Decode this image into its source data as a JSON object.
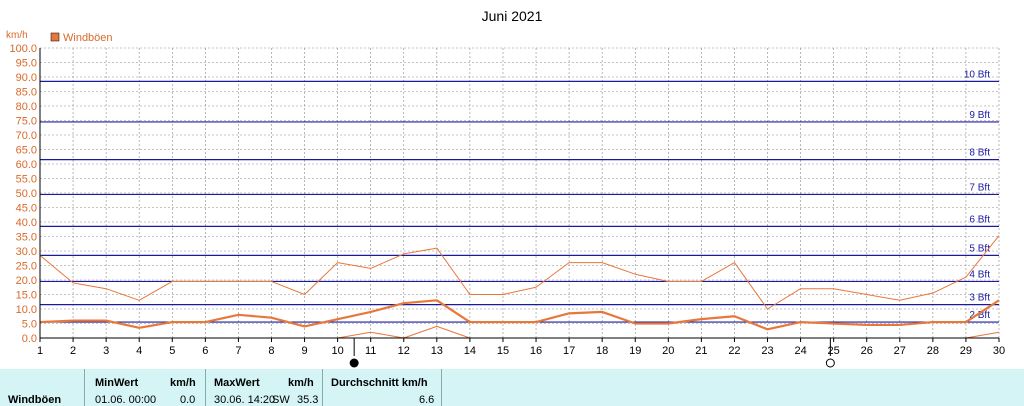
{
  "chart_data": {
    "type": "line",
    "title": "Juni 2021",
    "ylabel": "km/h",
    "legend": {
      "label": "Windböen",
      "placement": "top-left",
      "color": "#e8773a"
    },
    "ylim": [
      0,
      100
    ],
    "yticks": [
      "0.0",
      "5.0",
      "10.0",
      "15.0",
      "20.0",
      "25.0",
      "30.0",
      "35.0",
      "40.0",
      "45.0",
      "50.0",
      "55.0",
      "60.0",
      "65.0",
      "70.0",
      "75.0",
      "80.0",
      "85.0",
      "90.0",
      "95.0",
      "100.0"
    ],
    "x": [
      1,
      2,
      3,
      4,
      5,
      6,
      7,
      8,
      9,
      10,
      11,
      12,
      13,
      14,
      15,
      16,
      17,
      18,
      19,
      20,
      21,
      22,
      23,
      24,
      25,
      26,
      27,
      28,
      29,
      30
    ],
    "xlim": [
      1,
      30
    ],
    "series": [
      {
        "role": "max",
        "color": "#e8773a",
        "values": [
          28.5,
          19,
          17,
          13,
          19.5,
          19.5,
          19.5,
          19.5,
          15,
          26,
          24,
          29,
          31,
          15,
          15,
          17.5,
          26,
          26,
          22,
          19.5,
          19.5,
          26,
          10,
          17,
          17,
          15,
          13,
          15.5,
          21,
          35.3
        ]
      },
      {
        "role": "average",
        "color": "#e8773a",
        "values": [
          5.5,
          6,
          6,
          3.5,
          5.5,
          5.5,
          8,
          7,
          4,
          6.5,
          9,
          12,
          13,
          5.5,
          5.5,
          5.5,
          8.5,
          9,
          5,
          5,
          6.5,
          7.5,
          3,
          5.5,
          5,
          4.5,
          4.5,
          5.5,
          5.5,
          13
        ]
      },
      {
        "role": "min",
        "color": "#e8773a",
        "values": [
          0,
          0,
          0,
          0,
          0,
          0,
          0,
          0,
          0,
          0,
          2,
          0,
          4,
          0,
          0,
          0,
          0,
          0,
          0,
          0,
          0,
          0,
          0,
          0,
          0,
          0,
          0,
          0,
          0,
          2
        ]
      }
    ],
    "beaufort": [
      {
        "label": "2 Bft",
        "value": 5.5
      },
      {
        "label": "3 Bft",
        "value": 11.5
      },
      {
        "label": "4 Bft",
        "value": 19.5
      },
      {
        "label": "5 Bft",
        "value": 28.5
      },
      {
        "label": "6 Bft",
        "value": 38.5
      },
      {
        "label": "7 Bft",
        "value": 49.5
      },
      {
        "label": "8 Bft",
        "value": 61.5
      },
      {
        "label": "9 Bft",
        "value": 74.5
      },
      {
        "label": "10 Bft",
        "value": 88.5
      }
    ],
    "moon_phases": [
      {
        "day": 10.5,
        "phase": "new"
      },
      {
        "day": 24.9,
        "phase": "full"
      }
    ],
    "grid": true
  },
  "stats": {
    "row_label": "Windböen",
    "min_header": "MinWert",
    "min_unit": "km/h",
    "min_date": "01.06.  00:00",
    "min_value": "0.0",
    "max_header": "MaxWert",
    "max_unit": "km/h",
    "max_date": "30.06.  14:20",
    "max_dir": "SW",
    "max_value": "35.3",
    "avg_header": "Durchschnitt km/h",
    "avg_value": "6.6"
  }
}
